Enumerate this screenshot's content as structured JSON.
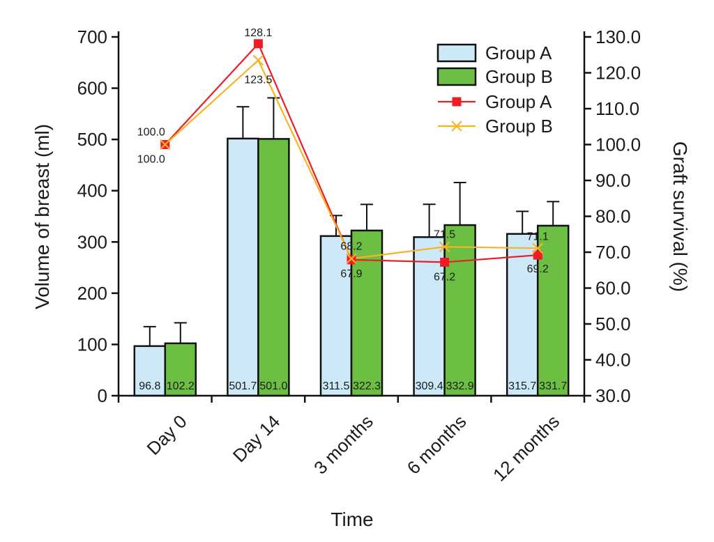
{
  "chart_data": {
    "type": "bar",
    "categories": [
      "Day 0",
      "Day 14",
      "3 months",
      "6 months",
      "12 months"
    ],
    "xlabel": "Time",
    "ylabel": "Volume of breast (ml)",
    "y2label": "Graft survival (%)",
    "ylim": [
      0,
      700
    ],
    "y2lim": [
      30,
      130
    ],
    "yticks": [
      "0",
      "100",
      "200",
      "300",
      "400",
      "500",
      "600",
      "700"
    ],
    "y2ticks": [
      "30.0",
      "40.0",
      "50.0",
      "60.0",
      "70.0",
      "80.0",
      "90.0",
      "100.0",
      "110.0",
      "120.0",
      "130.0"
    ],
    "bar_series": [
      {
        "name": "Group A",
        "color": "#cde9f8",
        "values": [
          96.8,
          501.7,
          311.5,
          309.4,
          315.7
        ],
        "labels": [
          "96.8",
          "501.7",
          "311.5",
          "309.4",
          "315.7"
        ],
        "errors": [
          38,
          62,
          40,
          64,
          44
        ]
      },
      {
        "name": "Group B",
        "color": "#6dbf43",
        "values": [
          102.2,
          501.0,
          322.3,
          332.9,
          331.7
        ],
        "labels": [
          "102.2",
          "501.0",
          "322.3",
          "332.9",
          "331.7"
        ],
        "errors": [
          40,
          80,
          51,
          83,
          47
        ]
      }
    ],
    "line_series": [
      {
        "name": "Group A",
        "color": "#ee1c25",
        "marker": "square",
        "values": [
          100.0,
          128.1,
          67.9,
          67.2,
          69.2
        ],
        "labels": [
          "100.0",
          "128.1",
          "67.9",
          "67.2",
          "69.2"
        ]
      },
      {
        "name": "Group B",
        "color": "#f7b227",
        "marker": "x",
        "values": [
          100.0,
          123.5,
          68.2,
          71.5,
          71.1
        ],
        "labels": [
          "100.0",
          "123.5",
          "68.2",
          "71.5",
          "71.1"
        ]
      }
    ],
    "legend": {
      "position": "top-right",
      "entries": [
        "Group A",
        "Group B",
        "Group A",
        "Group B"
      ]
    }
  }
}
